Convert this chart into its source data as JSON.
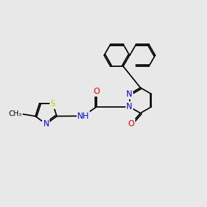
{
  "background_color": "#e8e8e8",
  "atom_colors": {
    "N": "#0000ff",
    "O": "#ff0000",
    "S": "#cccc00",
    "C": "#000000",
    "H": "#808080"
  },
  "lw": 1.3,
  "fs": 8.5
}
